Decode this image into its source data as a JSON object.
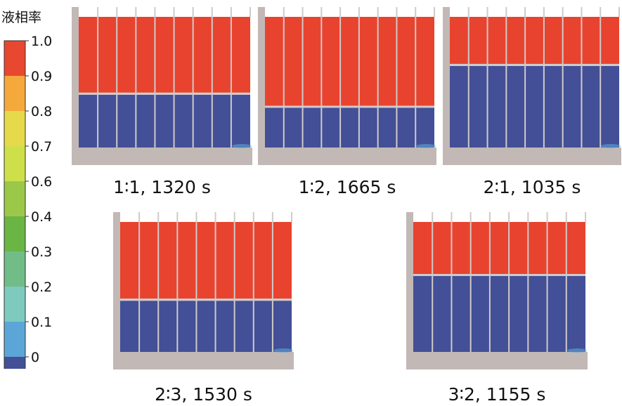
{
  "legend": {
    "title": "液相率",
    "ticks": [
      "1.0",
      "0.9",
      "0.8",
      "0.7",
      "0.6",
      "0.4",
      "0.3",
      "0.2",
      "0.1",
      "0"
    ],
    "colors": [
      "#e8482f",
      "#f5a83c",
      "#e6d94a",
      "#cde04a",
      "#9cc84a",
      "#6ab544",
      "#72bd87",
      "#7ecabf",
      "#5ba6d6",
      "#434f96"
    ]
  },
  "panels": [
    {
      "caption": "1∶1, 1320 s",
      "liquid_fraction_top": 0.58,
      "channels": 9
    },
    {
      "caption": "1∶2, 1665 s",
      "liquid_fraction_top": 0.68,
      "channels": 9
    },
    {
      "caption": "2∶1, 1035 s",
      "liquid_fraction_top": 0.36,
      "channels": 9
    },
    {
      "caption": "2∶3, 1530 s",
      "liquid_fraction_top": 0.59,
      "channels": 9
    },
    {
      "caption": "3∶2, 1155 s",
      "liquid_fraction_top": 0.4,
      "channels": 9
    }
  ],
  "colors": {
    "melted": "#e8432f",
    "solid": "#434f96",
    "frame": "#c2b8b5",
    "fin": "#d0cac9"
  }
}
